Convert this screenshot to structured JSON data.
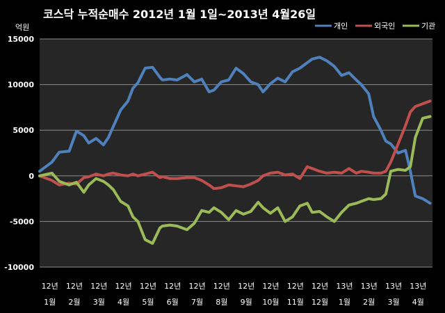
{
  "chart_data": {
    "type": "line",
    "title": "코스닥 누적순매수 2012년 1월 1일~2013년 4월26일",
    "ylabel": "억원",
    "ylim": [
      -10000,
      15000
    ],
    "yticks": [
      15000,
      10000,
      5000,
      0,
      -5000,
      -10000
    ],
    "xlim": [
      0,
      16
    ],
    "xtick_labels": [
      [
        "12년",
        "1월"
      ],
      [
        "12년",
        "2월"
      ],
      [
        "12년",
        "3월"
      ],
      [
        "12년",
        "4월"
      ],
      [
        "12년",
        "5월"
      ],
      [
        "12년",
        "6월"
      ],
      [
        "12년",
        "7월"
      ],
      [
        "12년",
        "8월"
      ],
      [
        "12년",
        "9월"
      ],
      [
        "12년",
        "10월"
      ],
      [
        "12년",
        "11월"
      ],
      [
        "12년",
        "12월"
      ],
      [
        "13년",
        "1월"
      ],
      [
        "13년",
        "2월"
      ],
      [
        "13년",
        "3월"
      ],
      [
        "13년",
        "4월"
      ]
    ],
    "legend_position": "top-right",
    "background": "#000000",
    "plot_background": "#262626",
    "grid": true,
    "series": [
      {
        "name": "개인",
        "color": "#4f81bd",
        "x": [
          0,
          0.5,
          0.8,
          1.2,
          1.5,
          1.8,
          2.0,
          2.3,
          2.6,
          2.8,
          3.0,
          3.3,
          3.6,
          3.8,
          4.0,
          4.3,
          4.6,
          4.9,
          5.0,
          5.3,
          5.6,
          6.0,
          6.3,
          6.6,
          6.9,
          7.1,
          7.4,
          7.7,
          8.0,
          8.3,
          8.6,
          8.9,
          9.1,
          9.4,
          9.7,
          10.0,
          10.3,
          10.6,
          10.9,
          11.1,
          11.4,
          11.7,
          12.0,
          12.3,
          12.6,
          12.9,
          13.1,
          13.4,
          13.6,
          13.9,
          14.1,
          14.3,
          14.6,
          14.9,
          15.1,
          15.3,
          15.6,
          15.9
        ],
        "values": [
          500,
          1500,
          2600,
          2700,
          4900,
          4400,
          3600,
          4100,
          3400,
          4200,
          5400,
          7200,
          8200,
          9600,
          10200,
          11800,
          11900,
          10800,
          10500,
          10600,
          10500,
          11100,
          10300,
          10600,
          9200,
          9400,
          10300,
          10500,
          11800,
          11200,
          10300,
          10000,
          9200,
          10100,
          10700,
          10300,
          11400,
          11800,
          12400,
          12800,
          13000,
          12600,
          12000,
          11000,
          11300,
          10500,
          10000,
          9000,
          6500,
          5000,
          3800,
          3500,
          2500,
          2800,
          500,
          -2200,
          -2500,
          -3000
        ]
      },
      {
        "name": "외국인",
        "color": "#c0504d",
        "x": [
          0,
          0.5,
          0.8,
          1.2,
          1.5,
          1.8,
          2.0,
          2.3,
          2.6,
          2.8,
          3.0,
          3.3,
          3.6,
          3.8,
          4.0,
          4.3,
          4.6,
          4.9,
          5.0,
          5.3,
          5.6,
          6.0,
          6.3,
          6.6,
          6.9,
          7.1,
          7.4,
          7.7,
          8.0,
          8.3,
          8.6,
          8.9,
          9.1,
          9.4,
          9.7,
          10.0,
          10.3,
          10.6,
          10.9,
          11.1,
          11.4,
          11.7,
          12.0,
          12.3,
          12.6,
          12.9,
          13.1,
          13.4,
          13.6,
          13.9,
          14.1,
          14.3,
          14.6,
          14.9,
          15.1,
          15.3,
          15.6,
          15.9
        ],
        "values": [
          0,
          -500,
          -1000,
          -800,
          -900,
          -200,
          -100,
          200,
          0,
          200,
          300,
          100,
          0,
          200,
          0,
          200,
          400,
          -200,
          -100,
          -300,
          -300,
          -200,
          -200,
          -500,
          -1000,
          -1400,
          -1300,
          -1000,
          -1100,
          -1200,
          -900,
          -500,
          0,
          300,
          400,
          100,
          200,
          -300,
          1000,
          800,
          500,
          300,
          400,
          300,
          800,
          300,
          500,
          400,
          300,
          300,
          500,
          1500,
          3500,
          5500,
          7000,
          7600,
          7900,
          8200
        ]
      },
      {
        "name": "기관",
        "color": "#9bbb59",
        "x": [
          0,
          0.5,
          0.8,
          1.2,
          1.5,
          1.8,
          2.0,
          2.3,
          2.6,
          2.8,
          3.0,
          3.3,
          3.6,
          3.8,
          4.0,
          4.3,
          4.6,
          4.9,
          5.0,
          5.3,
          5.6,
          6.0,
          6.3,
          6.6,
          6.9,
          7.1,
          7.4,
          7.7,
          8.0,
          8.3,
          8.6,
          8.9,
          9.1,
          9.4,
          9.7,
          10.0,
          10.3,
          10.6,
          10.9,
          11.1,
          11.4,
          11.7,
          12.0,
          12.3,
          12.6,
          12.9,
          13.1,
          13.4,
          13.6,
          13.9,
          14.1,
          14.3,
          14.6,
          14.9,
          15.1,
          15.3,
          15.6,
          15.9
        ],
        "values": [
          0,
          300,
          -600,
          -1000,
          -700,
          -1800,
          -1000,
          -300,
          -600,
          -1000,
          -1500,
          -2800,
          -3300,
          -4500,
          -5000,
          -7000,
          -7400,
          -5700,
          -5500,
          -5400,
          -5500,
          -5900,
          -5200,
          -3800,
          -4000,
          -3500,
          -4000,
          -4800,
          -3800,
          -4200,
          -3900,
          -2900,
          -3500,
          -4100,
          -3500,
          -5000,
          -4500,
          -3300,
          -3000,
          -4000,
          -3900,
          -4500,
          -5000,
          -4000,
          -3200,
          -3000,
          -2800,
          -2500,
          -2600,
          -2500,
          -2000,
          500,
          700,
          600,
          1000,
          4200,
          6300,
          6500
        ]
      }
    ]
  }
}
